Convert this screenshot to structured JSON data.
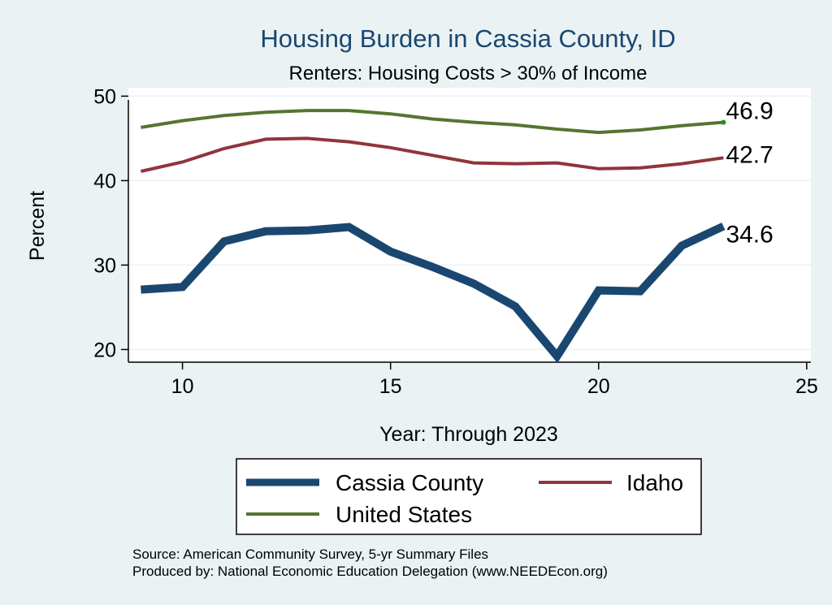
{
  "chart_data": {
    "type": "line",
    "title": "Housing Burden in Cassia County, ID",
    "subtitle": "Renters: Housing Costs > 30% of Income",
    "xlabel": "Year: Through 2023",
    "ylabel": "Percent",
    "xlim": [
      8.7,
      25.1
    ],
    "ylim": [
      18.5,
      51.0
    ],
    "xticks": [
      10,
      15,
      20,
      25
    ],
    "yticks": [
      20,
      30,
      40,
      50
    ],
    "grid": true,
    "x": [
      9,
      10,
      11,
      12,
      13,
      14,
      15,
      16,
      17,
      18,
      19,
      20,
      21,
      22,
      23
    ],
    "series": [
      {
        "name": "Cassia County",
        "color": "#1a476f",
        "values": [
          27.1,
          27.4,
          32.8,
          34.0,
          34.1,
          34.5,
          31.6,
          29.8,
          27.8,
          25.1,
          19.2,
          27.0,
          26.9,
          32.3,
          34.6
        ],
        "end_label": "34.6"
      },
      {
        "name": "Idaho",
        "color": "#90353b",
        "values": [
          41.1,
          42.2,
          43.8,
          44.9,
          45.0,
          44.6,
          43.9,
          43.0,
          42.1,
          42.0,
          42.1,
          41.4,
          41.5,
          42.0,
          42.7
        ],
        "end_label": "42.7"
      },
      {
        "name": "United States",
        "color": "#55752f",
        "values": [
          46.3,
          47.1,
          47.7,
          48.1,
          48.3,
          48.3,
          47.9,
          47.3,
          46.9,
          46.6,
          46.1,
          45.7,
          46.0,
          46.5,
          46.9
        ],
        "end_label": "46.9"
      }
    ],
    "legend": {
      "position": "bottom",
      "entries": [
        "Cassia County",
        "Idaho",
        "United States"
      ]
    }
  },
  "source_lines": [
    "Source: American Community Survey, 5-yr Summary Files",
    "Produced by: National Economic Education Delegation (www.NEEDEcon.org)"
  ]
}
